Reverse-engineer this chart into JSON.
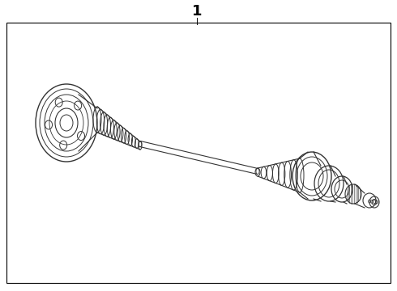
{
  "bg_color": "#ffffff",
  "line_color": "#333333",
  "fig_width": 4.9,
  "fig_height": 3.6,
  "dpi": 100,
  "part_number": "1"
}
